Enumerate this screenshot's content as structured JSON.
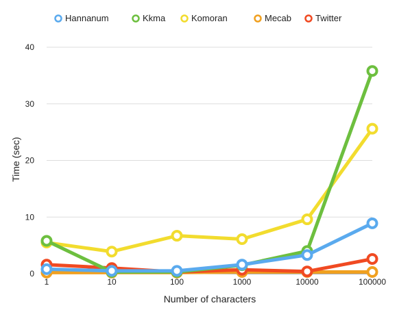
{
  "chart_data": {
    "type": "line",
    "title": "",
    "xlabel": "Number of characters",
    "ylabel": "Time (sec)",
    "x_scale": "categorical",
    "categories": [
      "1",
      "10",
      "100",
      "1000",
      "10000",
      "100000"
    ],
    "ylim": [
      0,
      40
    ],
    "yticks": [
      "0",
      "10",
      "20",
      "30",
      "40"
    ],
    "grid": true,
    "legend_position": "top",
    "series": [
      {
        "name": "Hannanum",
        "color": "#5aaaee",
        "values": [
          0.8,
          0.5,
          0.5,
          1.6,
          3.3,
          8.9
        ]
      },
      {
        "name": "Kkma",
        "color": "#6dbf3f",
        "values": [
          5.8,
          0.3,
          0.3,
          1.5,
          4.0,
          35.8
        ]
      },
      {
        "name": "Komoran",
        "color": "#f2dc2e",
        "values": [
          5.5,
          3.9,
          6.7,
          6.1,
          9.6,
          25.6
        ]
      },
      {
        "name": "Mecab",
        "color": "#f0a020",
        "values": [
          0.2,
          0.2,
          0.2,
          0.3,
          0.3,
          0.3
        ]
      },
      {
        "name": "Twitter",
        "color": "#f04a22",
        "values": [
          1.6,
          1.0,
          0.3,
          0.7,
          0.4,
          2.6
        ]
      }
    ]
  }
}
